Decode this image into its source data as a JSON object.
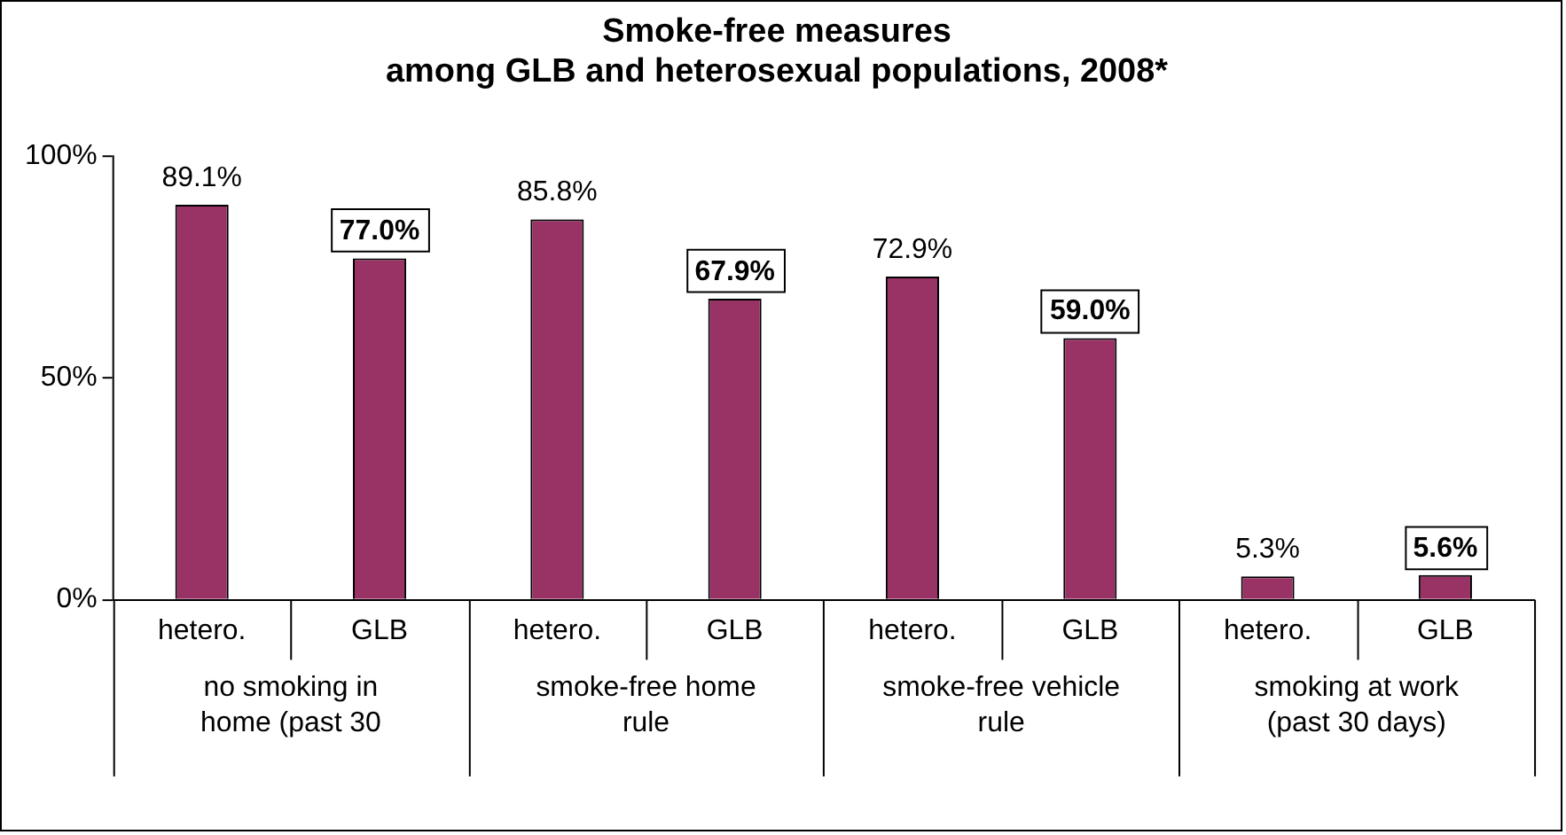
{
  "chart_data": {
    "type": "bar",
    "title": "Smoke-free measures\namong GLB and heterosexual populations, 2008*",
    "categories": [
      "hetero.",
      "GLB",
      "hetero.",
      "GLB",
      "hetero.",
      "GLB",
      "hetero.",
      "GLB"
    ],
    "values": [
      89.1,
      77.0,
      85.8,
      67.9,
      72.9,
      59.0,
      5.3,
      5.6
    ],
    "value_labels": [
      "89.1%",
      "77.0%",
      "85.8%",
      "67.9%",
      "72.9%",
      "59.0%",
      "5.3%",
      "5.6%"
    ],
    "color": "#993366",
    "ylim": [
      0,
      100
    ],
    "yticks": [
      {
        "value": 0,
        "label": "0%"
      },
      {
        "value": 50,
        "label": "50%"
      },
      {
        "value": 100,
        "label": "100%"
      }
    ],
    "annotations": [
      "no smoking in\nhome (past 30",
      "smoke-free home\nrule",
      "smoke-free vehicle\nrule",
      "smoking at work\n(past 30 days)"
    ],
    "grid": false,
    "legend": false
  }
}
